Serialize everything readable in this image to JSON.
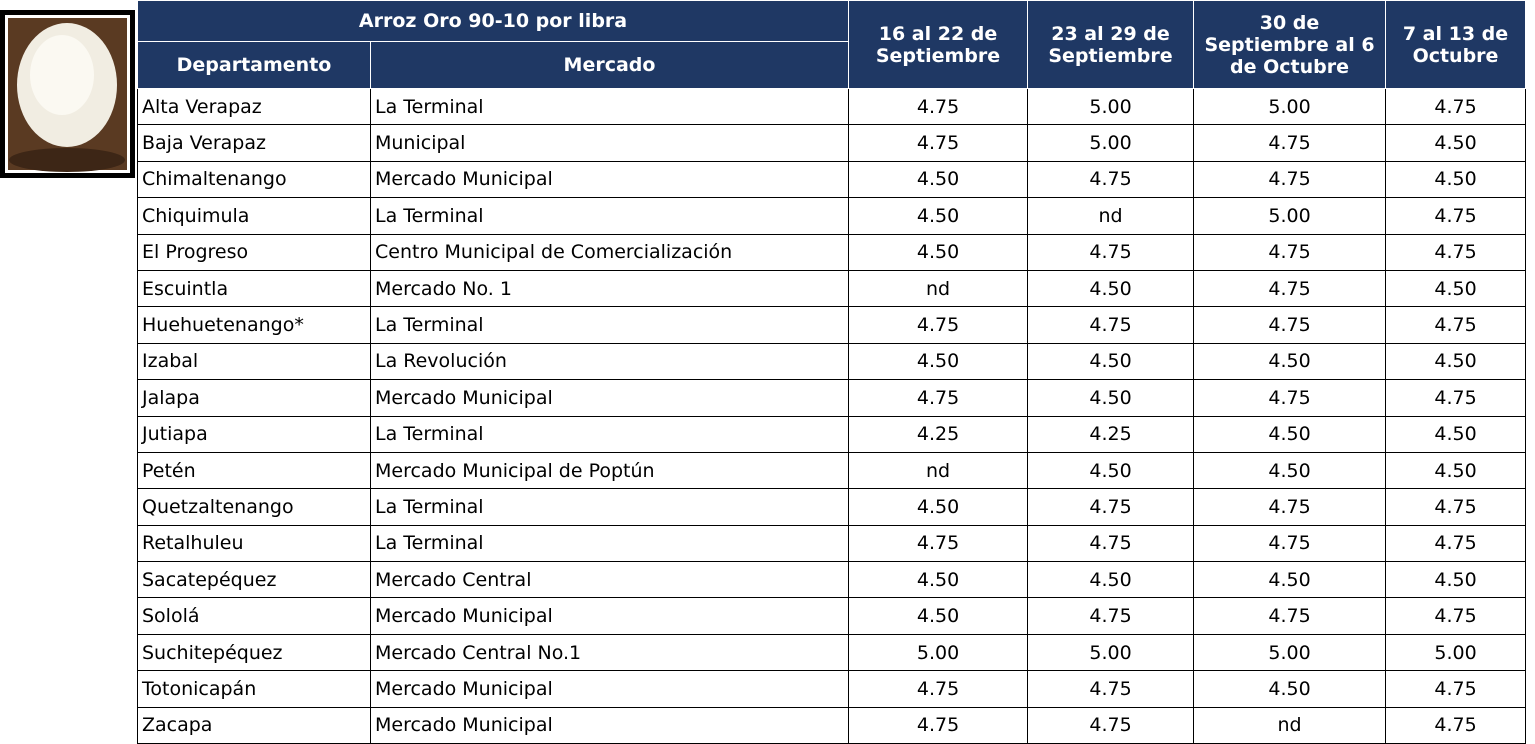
{
  "table": {
    "title": "Arroz Oro 90-10 por libra",
    "columns": [
      "Departamento",
      "Mercado"
    ],
    "weeks": [
      "16 al 22 de Septiembre",
      "23 al 29 de Septiembre",
      "30 de Septiembre al 6 de Octubre",
      "7 al 13 de Octubre"
    ],
    "rows": [
      [
        "Alta Verapaz",
        "La Terminal",
        "4.75",
        "5.00",
        "5.00",
        "4.75"
      ],
      [
        "Baja Verapaz",
        "Municipal",
        "4.75",
        "5.00",
        "4.75",
        "4.50"
      ],
      [
        "Chimaltenango",
        "Mercado Municipal",
        "4.50",
        "4.75",
        "4.75",
        "4.50"
      ],
      [
        "Chiquimula",
        "La Terminal",
        "4.50",
        "nd",
        "5.00",
        "4.75"
      ],
      [
        "El Progreso",
        "Centro Municipal de Comercialización",
        "4.50",
        "4.75",
        "4.75",
        "4.75"
      ],
      [
        "Escuintla",
        "Mercado No. 1",
        "nd",
        "4.50",
        "4.75",
        "4.50"
      ],
      [
        "Huehuetenango*",
        "La Terminal",
        "4.75",
        "4.75",
        "4.75",
        "4.75"
      ],
      [
        "Izabal",
        "La Revolución",
        "4.50",
        "4.50",
        "4.50",
        "4.50"
      ],
      [
        "Jalapa",
        "Mercado Municipal",
        "4.75",
        "4.50",
        "4.75",
        "4.75"
      ],
      [
        "Jutiapa",
        "La Terminal",
        "4.25",
        "4.25",
        "4.50",
        "4.50"
      ],
      [
        "Petén",
        "Mercado Municipal de Poptún",
        "nd",
        "4.50",
        "4.50",
        "4.50"
      ],
      [
        "Quetzaltenango",
        "La Terminal",
        "4.50",
        "4.75",
        "4.75",
        "4.75"
      ],
      [
        "Retalhuleu",
        "La Terminal",
        "4.75",
        "4.75",
        "4.75",
        "4.75"
      ],
      [
        "Sacatepéquez",
        "Mercado Central",
        "4.50",
        "4.50",
        "4.50",
        "4.50"
      ],
      [
        "Sololá",
        "Mercado Municipal",
        "4.50",
        "4.75",
        "4.75",
        "4.75"
      ],
      [
        "Suchitepéquez",
        "Mercado Central No.1",
        "5.00",
        "5.00",
        "5.00",
        "5.00"
      ],
      [
        "Totonicapán",
        "Mercado Municipal",
        "4.75",
        "4.75",
        "4.50",
        "4.75"
      ],
      [
        "Zacapa",
        "Mercado Municipal",
        "4.75",
        "4.75",
        "nd",
        "4.75"
      ]
    ]
  }
}
